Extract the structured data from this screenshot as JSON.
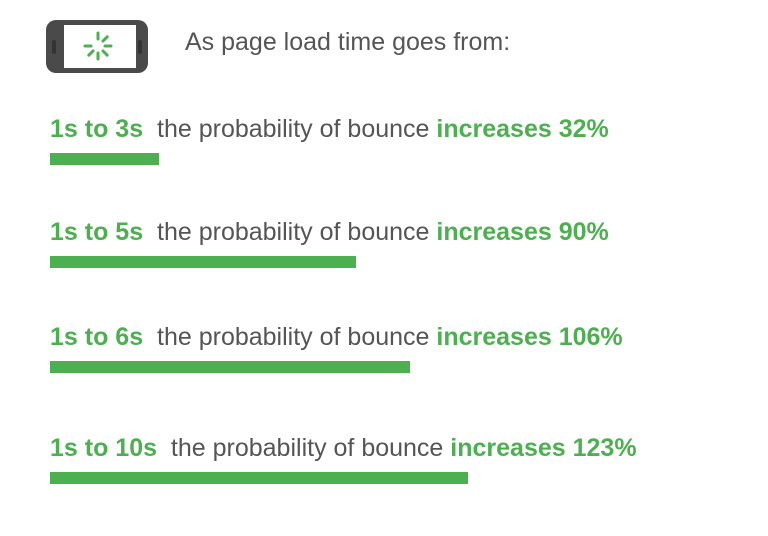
{
  "header": {
    "intro": "As page load time goes from:",
    "icon": "phone-loading-spinner-icon"
  },
  "chart_data": {
    "type": "bar",
    "orientation": "horizontal",
    "categories": [
      "1s to 3s",
      "1s to 5s",
      "1s to 6s",
      "1s to 10s"
    ],
    "values": [
      32,
      90,
      106,
      123
    ],
    "unit": "%",
    "middle_text": "the probability of bounce",
    "prefix": "increases",
    "labels": [
      "increases 32%",
      "increases 90%",
      "increases 106%",
      "increases 123%"
    ],
    "color": "#4caf50"
  }
}
